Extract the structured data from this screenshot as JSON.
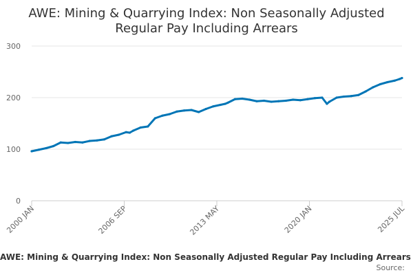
{
  "chart_data": {
    "type": "line",
    "title_lines": [
      "AWE: Mining & Quarrying Index: Non Seasonally Adjusted",
      "Regular Pay Including Arrears"
    ],
    "xlabel": "",
    "ylabel": "",
    "ylim": [
      0,
      300
    ],
    "yticks": [
      0,
      100,
      200,
      300
    ],
    "xticks": [
      "2000 JAN",
      "2006 SEP",
      "2013 MAY",
      "2020 JAN",
      "2025 JUL"
    ],
    "grid": true,
    "legend": {
      "label": "AWE: Mining & Quarrying Index: Non Seasonally Adjusted Regular Pay Including Arrears",
      "position": "bottom"
    },
    "source_label": "Source:",
    "colors": {
      "line": "#0075b6",
      "grid": "#e6e6e6",
      "axis": "#cccccc"
    },
    "series": [
      {
        "name": "AWE: Mining & Quarrying Index: Non Seasonally Adjusted Regular Pay Including Arrears",
        "x": [
          2000.0,
          2000.5,
          2001.0,
          2001.5,
          2002.0,
          2002.5,
          2003.0,
          2003.5,
          2004.0,
          2004.5,
          2005.0,
          2005.5,
          2006.0,
          2006.5,
          2006.75,
          2007.0,
          2007.5,
          2008.0,
          2008.5,
          2009.0,
          2009.5,
          2010.0,
          2010.5,
          2011.0,
          2011.5,
          2012.0,
          2012.5,
          2013.0,
          2013.33,
          2013.5,
          2014.0,
          2014.5,
          2015.0,
          2015.5,
          2016.0,
          2016.5,
          2017.0,
          2017.5,
          2018.0,
          2018.5,
          2019.0,
          2019.5,
          2020.0,
          2020.33,
          2020.5,
          2021.0,
          2021.5,
          2022.0,
          2022.5,
          2023.0,
          2023.5,
          2024.0,
          2024.5,
          2025.0,
          2025.33,
          2025.5
        ],
        "values": [
          96,
          99,
          102,
          106,
          113,
          112,
          114,
          113,
          116,
          117,
          119,
          125,
          128,
          133,
          132,
          136,
          142,
          144,
          160,
          165,
          168,
          173,
          175,
          176,
          172,
          178,
          183,
          186,
          188,
          190,
          197,
          198,
          196,
          193,
          194,
          192,
          193,
          194,
          196,
          195,
          197,
          199,
          200,
          188,
          192,
          200,
          202,
          203,
          205,
          212,
          220,
          226,
          230,
          233,
          236,
          238
        ]
      }
    ]
  }
}
